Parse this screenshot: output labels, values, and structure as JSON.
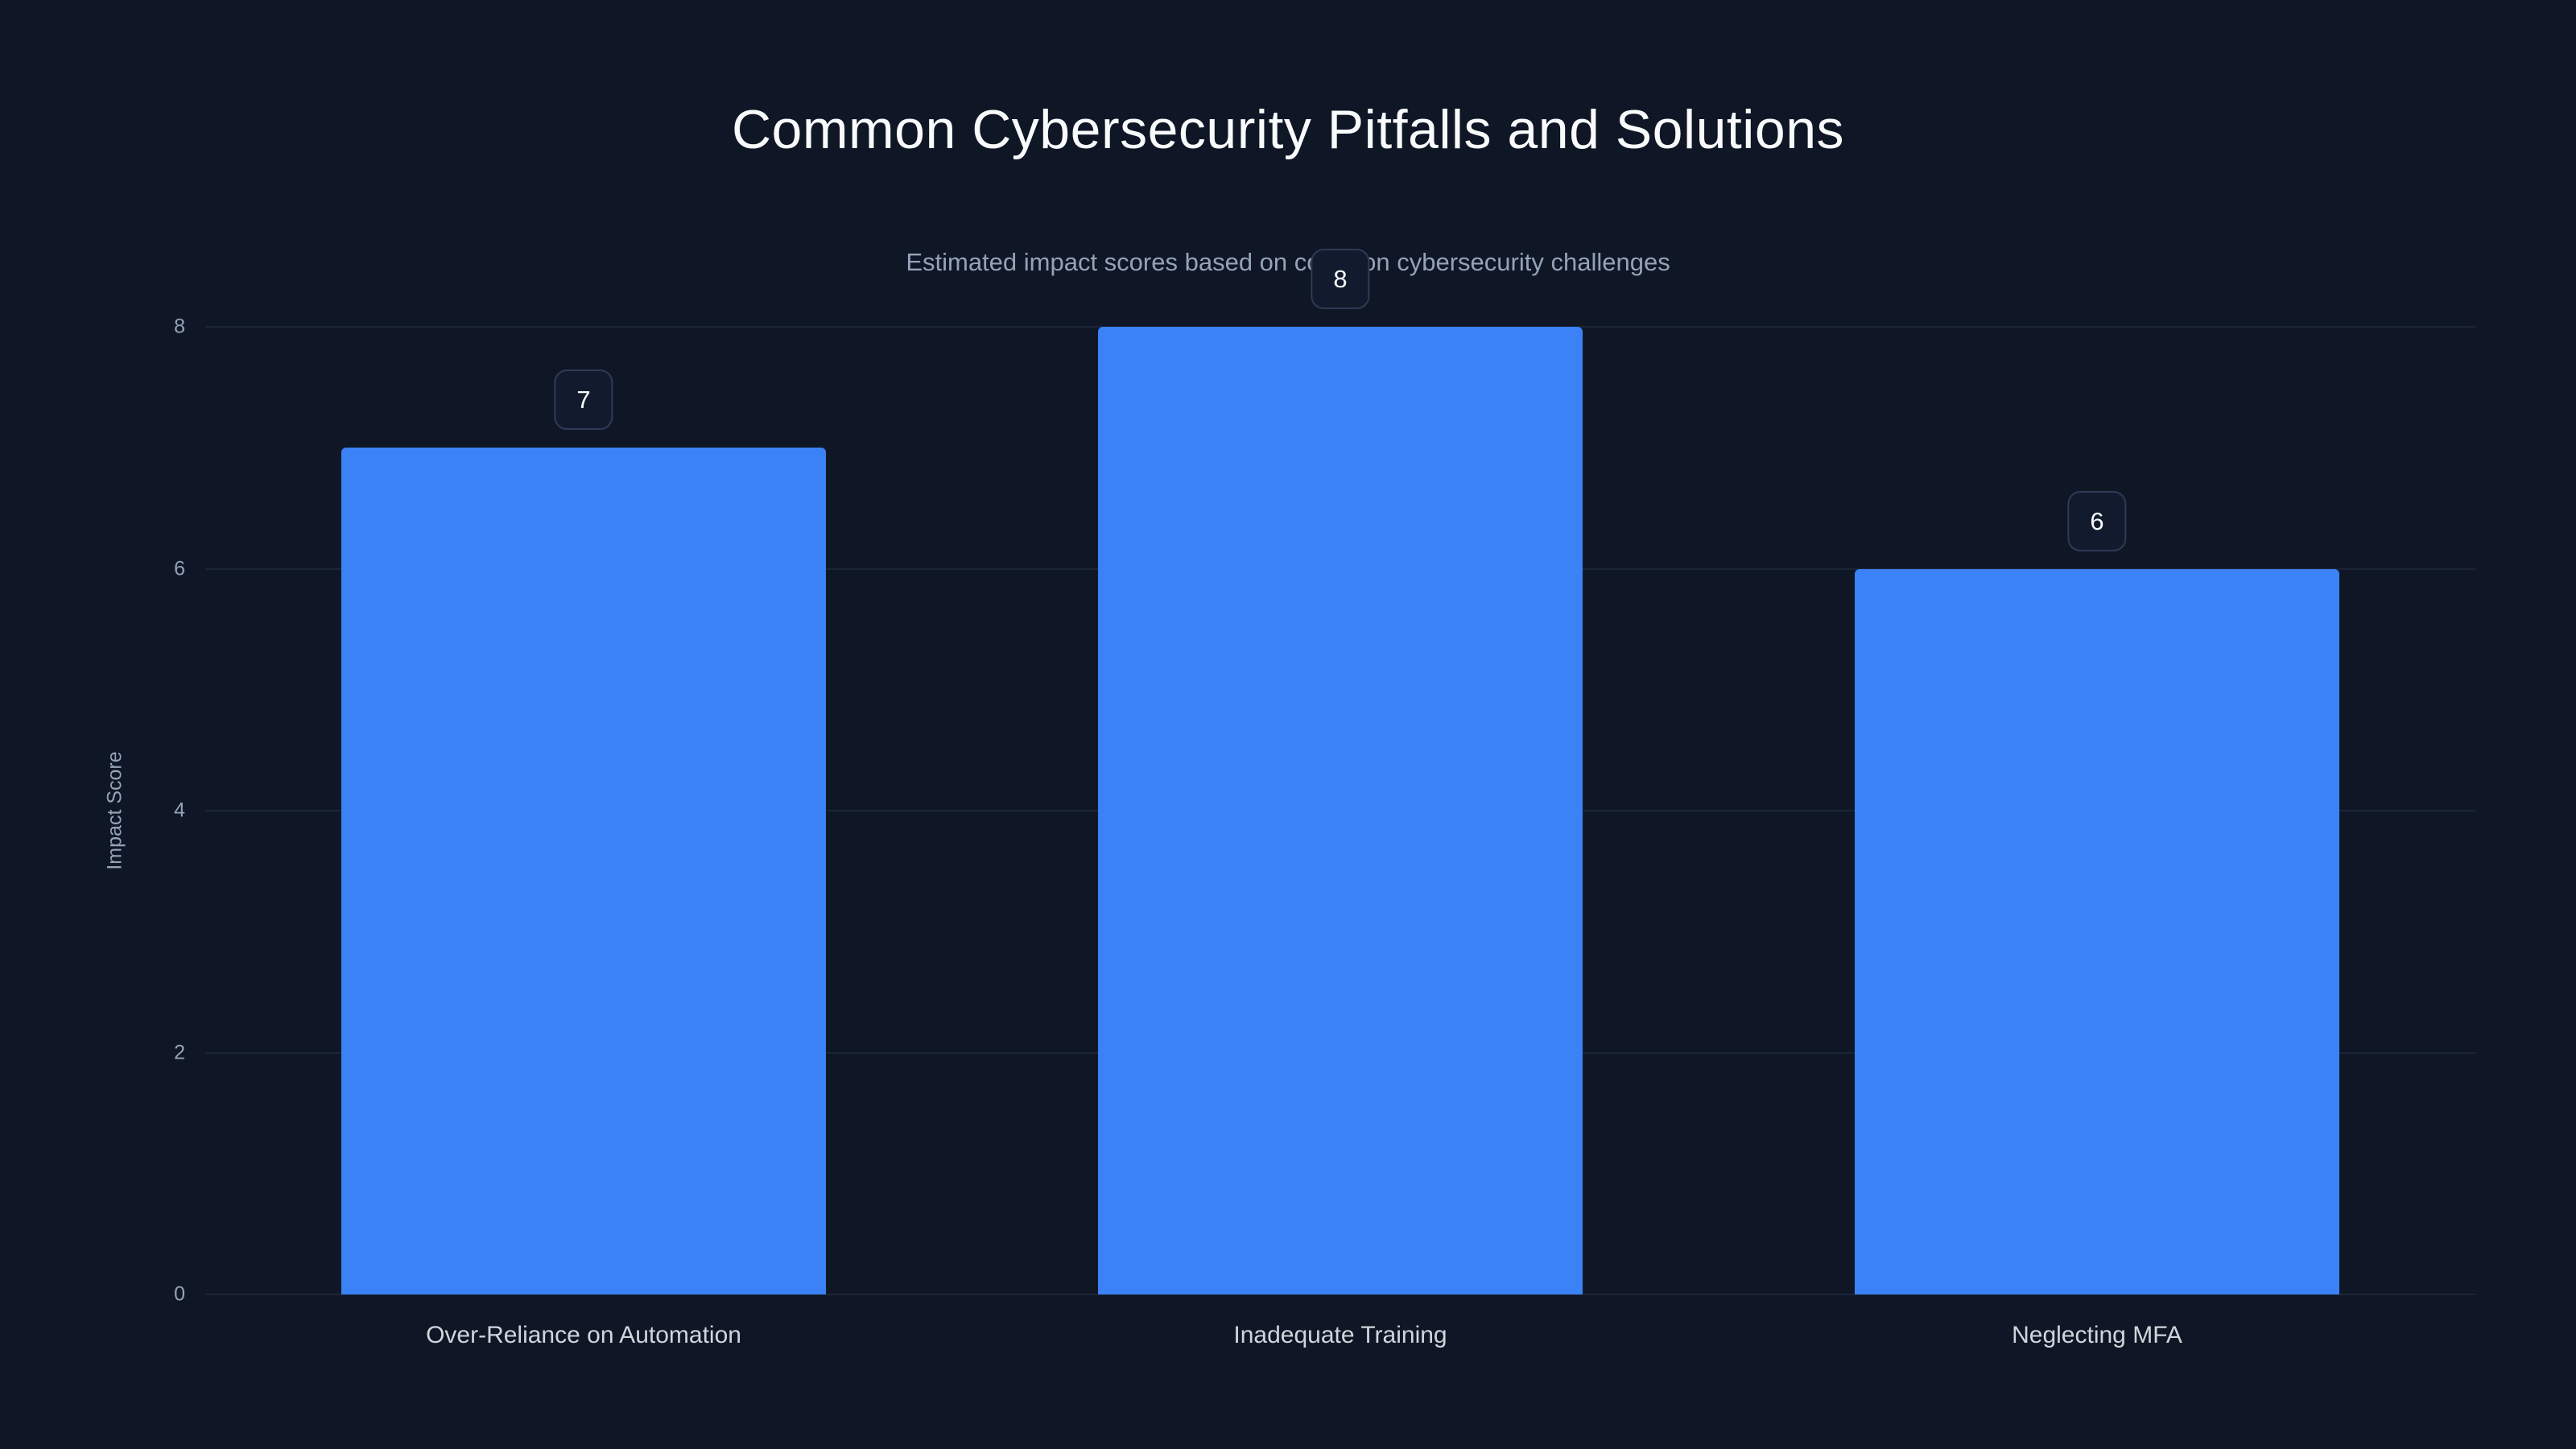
{
  "chart_data": {
    "type": "bar",
    "title": "Common Cybersecurity Pitfalls and Solutions",
    "subtitle": "Estimated impact scores based on common cybersecurity challenges",
    "categories": [
      "Over-Reliance on Automation",
      "Inadequate Training",
      "Neglecting MFA"
    ],
    "values": [
      7,
      8,
      6
    ],
    "value_labels": [
      "7",
      "8",
      "6"
    ],
    "xlabel": "",
    "ylabel": "Impact Score",
    "ylim": [
      0,
      8
    ],
    "yticks": [
      0,
      2,
      4,
      6,
      8
    ],
    "grid": "horizontal",
    "legend": "none",
    "colors": {
      "background": "#0f1726",
      "bar": "#3b82f6",
      "gridline": "#1c2539",
      "title_text": "#f8fafc",
      "muted_text": "#94a3b8",
      "x_tick_text": "#d1d5db",
      "badge_background": "#121b2e",
      "badge_border": "#2f3b55"
    }
  }
}
